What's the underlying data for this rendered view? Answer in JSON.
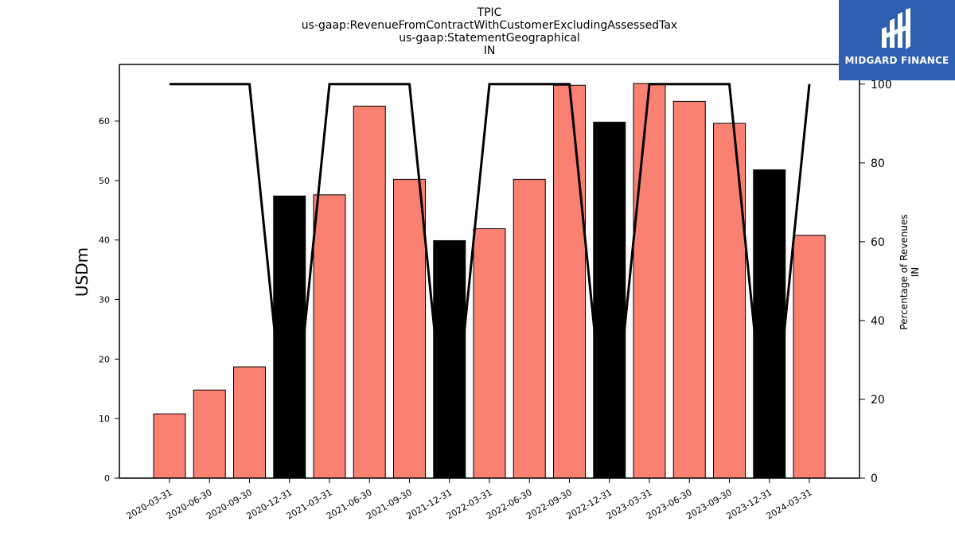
{
  "chart_data": {
    "type": "bar",
    "title_lines": [
      "TPIC",
      "us-gaap:RevenueFromContractWithCustomerExcludingAssessedTax",
      "us-gaap:StatementGeographical",
      "IN"
    ],
    "ylabel": "USDm",
    "y2label_lines": [
      "Percentage of Revenues",
      "IN"
    ],
    "ylim": [
      0,
      69.5
    ],
    "y2lim": [
      0,
      105
    ],
    "yticks": [
      0,
      10,
      20,
      30,
      40,
      50,
      60
    ],
    "y2ticks": [
      0,
      20,
      40,
      60,
      80,
      100
    ],
    "categories": [
      "2020-03-31",
      "2020-06-30",
      "2020-09-30",
      "2020-12-31",
      "2021-03-31",
      "2021-06-30",
      "2021-09-30",
      "2021-12-31",
      "2022-03-31",
      "2022-06-30",
      "2022-09-30",
      "2022-12-31",
      "2023-03-31",
      "2023-06-30",
      "2023-09-30",
      "2023-12-31",
      "2024-03-31"
    ],
    "values": [
      10.8,
      14.8,
      18.7,
      47.4,
      47.6,
      62.5,
      50.2,
      39.9,
      41.9,
      50.2,
      66.0,
      59.8,
      66.3,
      63.3,
      59.6,
      51.8,
      40.8
    ],
    "bar_colors": [
      "#fa8072",
      "#fa8072",
      "#fa8072",
      "#000000",
      "#fa8072",
      "#fa8072",
      "#fa8072",
      "#000000",
      "#fa8072",
      "#fa8072",
      "#fa8072",
      "#000000",
      "#fa8072",
      "#fa8072",
      "#fa8072",
      "#000000",
      "#fa8072"
    ],
    "percentage_series": [
      100,
      100,
      100,
      0,
      100,
      100,
      100,
      0,
      100,
      100,
      100,
      0,
      100,
      100,
      100,
      0,
      100
    ],
    "line_color": "#000000",
    "grid": false
  },
  "logo": {
    "text": "MIDGARD FINANCE",
    "background": "#2f5fb0"
  }
}
